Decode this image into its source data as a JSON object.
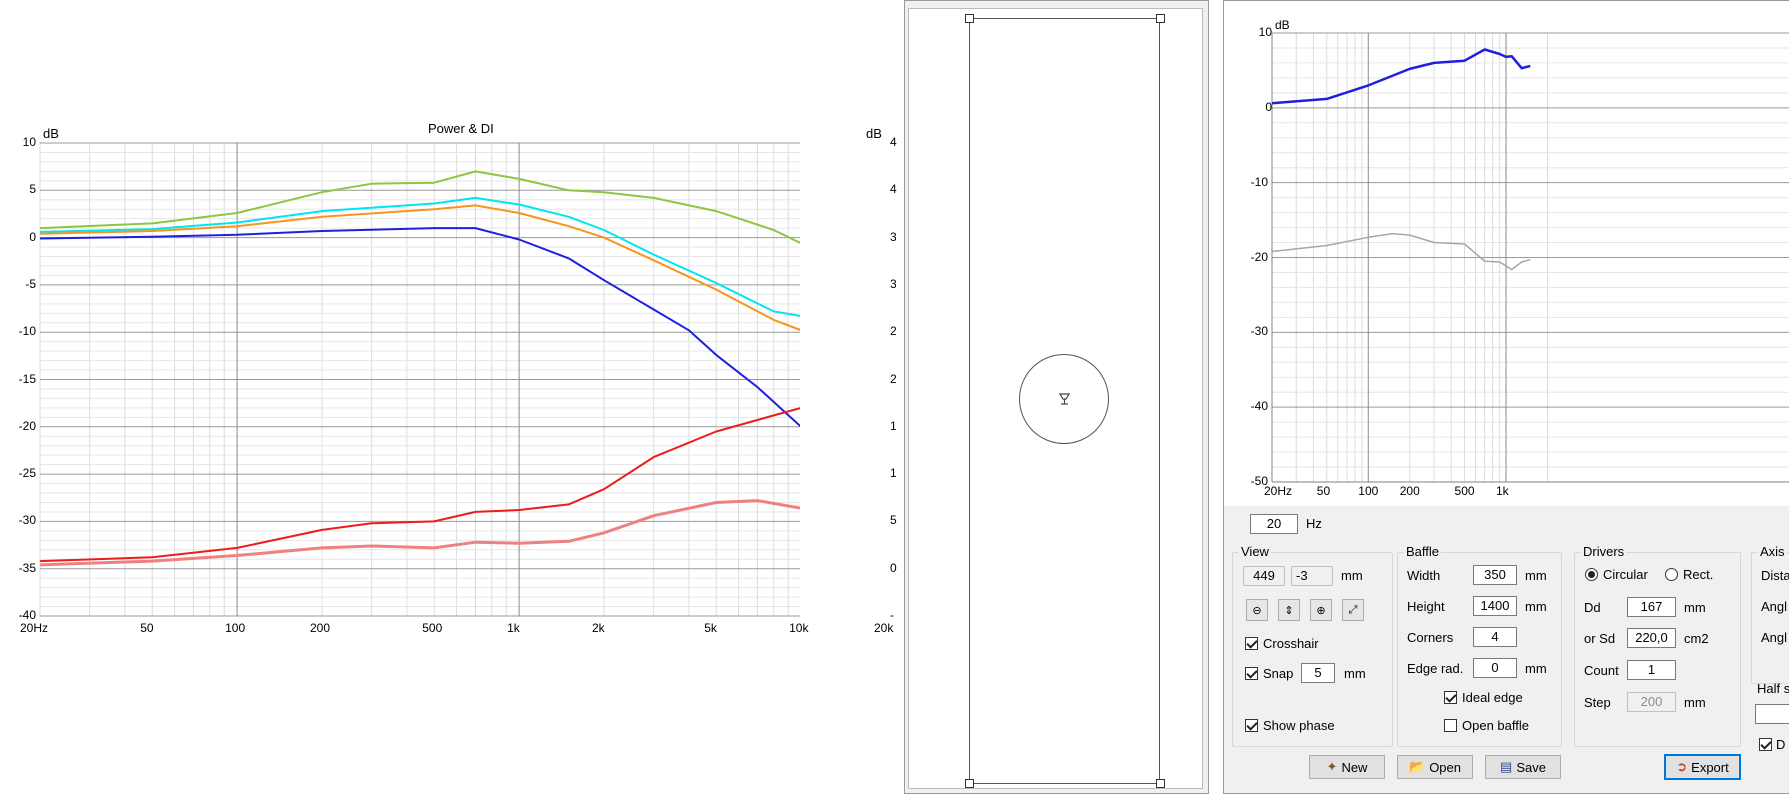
{
  "left_chart": {
    "title": "Power & DI",
    "unit_left": "dB",
    "unit_right": "dB",
    "y_ticks": [
      "10",
      "5",
      "0",
      "-5",
      "-10",
      "-15",
      "-20",
      "-25",
      "-30",
      "-35",
      "-40"
    ],
    "y_right_ticks": [
      "4",
      "4",
      "3",
      "3",
      "2",
      "2",
      "1",
      "1",
      "5",
      "0",
      "-"
    ],
    "x_ticks": [
      "20Hz",
      "50",
      "100",
      "200",
      "500",
      "1k",
      "2k",
      "5k",
      "10k",
      "20k"
    ],
    "colors": {
      "green": "#8dc63f",
      "cyan": "#00e5ee",
      "orange": "#f7941d",
      "blue": "#1f1fe0",
      "red": "#ee1c1c",
      "salmon": "#f08080"
    }
  },
  "baffle_view": {
    "driver_icon": "speaker-icon"
  },
  "right_chart": {
    "unit": "dB",
    "y_ticks": [
      "10",
      "0",
      "-10",
      "-20",
      "-30",
      "-40",
      "-50"
    ],
    "x_ticks": [
      "20Hz",
      "50",
      "100",
      "200",
      "500",
      "1k"
    ],
    "hz_value": "20",
    "hz_unit": "Hz"
  },
  "view_group": {
    "title": "View",
    "x_value": "449",
    "y_value": "-3",
    "unit": "mm",
    "crosshair_label": "Crosshair",
    "snap_label": "Snap",
    "snap_value": "5",
    "snap_unit": "mm",
    "show_phase_label": "Show phase"
  },
  "baffle_group": {
    "title": "Baffle",
    "width_label": "Width",
    "width_value": "350",
    "width_unit": "mm",
    "height_label": "Height",
    "height_value": "1400",
    "height_unit": "mm",
    "corners_label": "Corners",
    "corners_value": "4",
    "edge_label": "Edge rad.",
    "edge_value": "0",
    "edge_unit": "mm",
    "ideal_edge_label": "Ideal edge",
    "open_baffle_label": "Open baffle"
  },
  "drivers_group": {
    "title": "Drivers",
    "circular_label": "Circular",
    "rect_label": "Rect.",
    "dd_label": "Dd",
    "dd_value": "167",
    "dd_unit": "mm",
    "sd_label": "or Sd",
    "sd_value": "220,0",
    "sd_unit": "cm2",
    "count_label": "Count",
    "count_value": "1",
    "step_label": "Step",
    "step_value": "200",
    "step_unit": "mm"
  },
  "axis_group": {
    "title": "Axis",
    "dist_label": "Dista",
    "ang1_label": "Angl",
    "ang2_label": "Angl",
    "half_label": "Half s",
    "d_label": "D"
  },
  "buttons": {
    "new": "New",
    "open": "Open",
    "save": "Save",
    "export": "Export"
  }
}
